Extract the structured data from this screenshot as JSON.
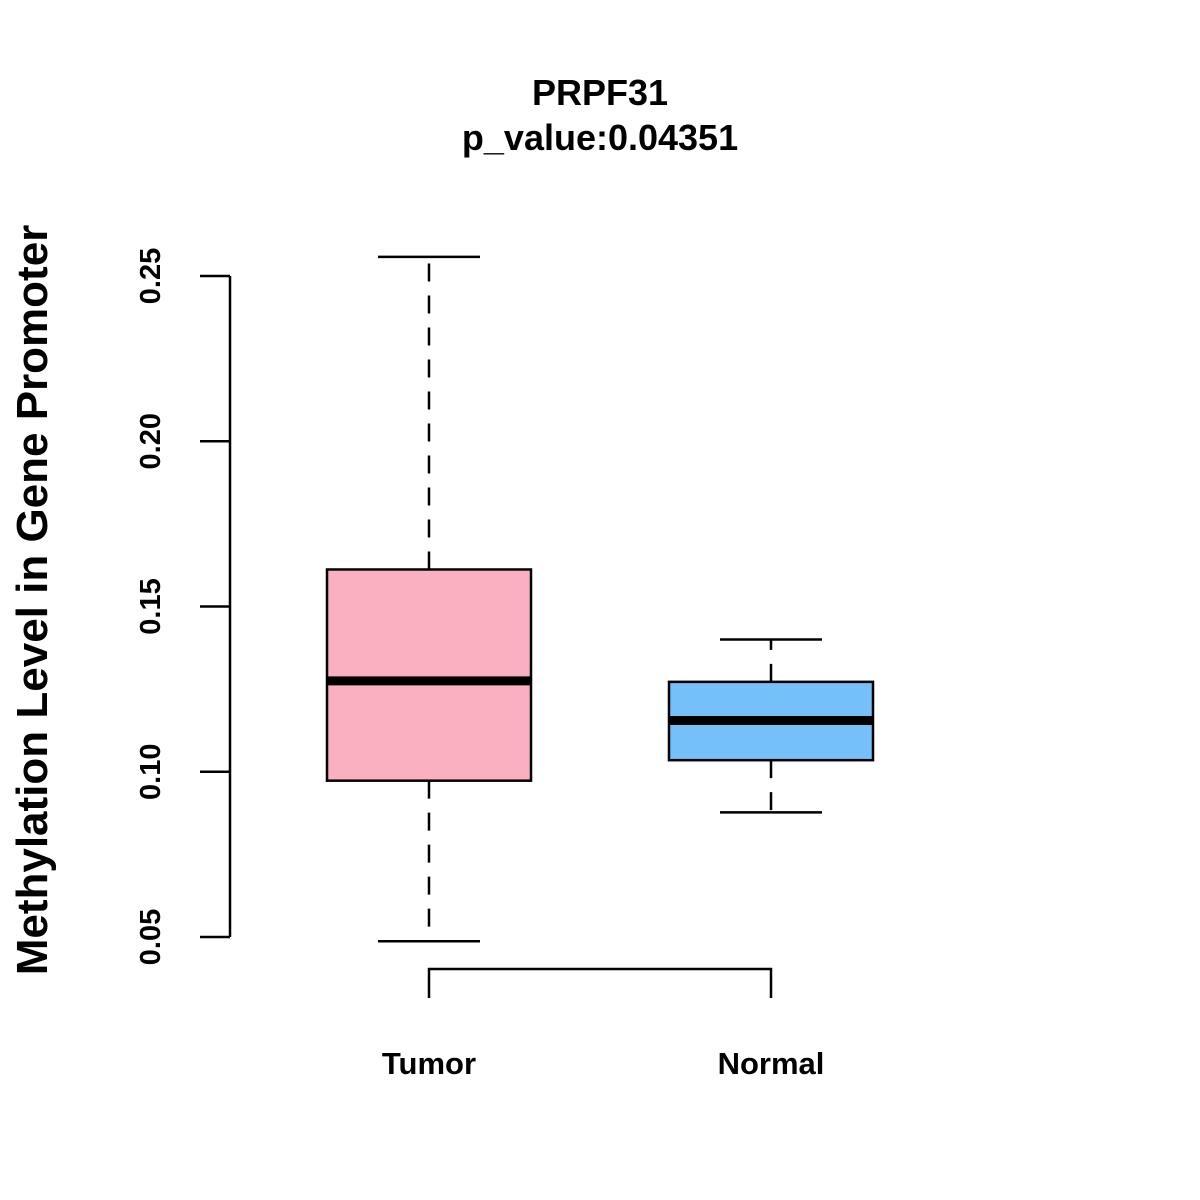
{
  "chart_data": {
    "type": "boxplot",
    "title": "PRPF31",
    "subtitle": "p_value:0.04351",
    "xlabel": "",
    "ylabel": "Methylation Level in Gene Promoter",
    "ylim": [
      0.05,
      0.25
    ],
    "yticks": [
      0.05,
      0.1,
      0.15,
      0.2,
      0.25
    ],
    "ytick_labels": [
      "0.05",
      "0.10",
      "0.15",
      "0.20",
      "0.25"
    ],
    "categories": [
      "Tumor",
      "Normal"
    ],
    "boxes": [
      {
        "name": "Tumor",
        "whisker_low": 0.0487,
        "q1": 0.0973,
        "median": 0.1275,
        "q3": 0.1612,
        "whisker_high": 0.2558,
        "color": "#FBB0C2"
      },
      {
        "name": "Normal",
        "whisker_low": 0.0877,
        "q1": 0.1035,
        "median": 0.1155,
        "q3": 0.1272,
        "whisker_high": 0.14,
        "color": "#75C0F8"
      }
    ],
    "comparison_bracket": [
      "Tumor",
      "Normal"
    ]
  }
}
